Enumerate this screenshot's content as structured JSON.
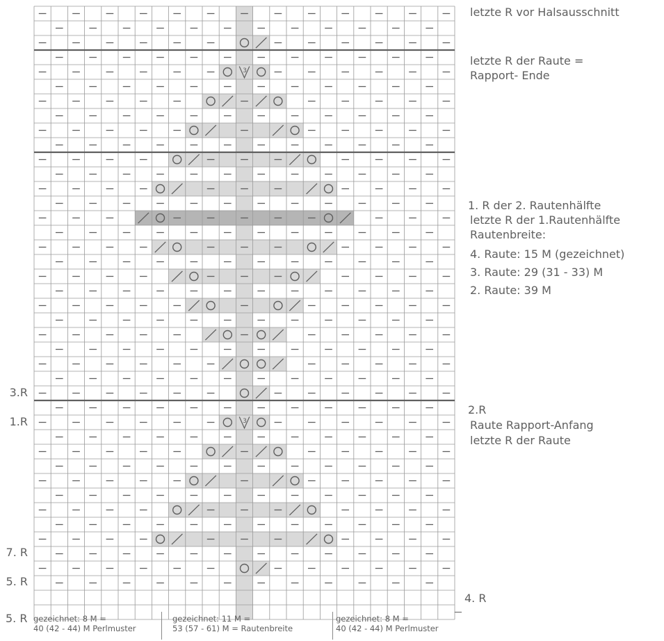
{
  "colors": {
    "shade": "#d9d9d9",
    "shade_dark": "#b5b5b5",
    "grid": "#9a9a9a",
    "ink": "#5f5f5f",
    "separator": "#888888"
  },
  "chart": {
    "columns": 25,
    "rows": 42,
    "perl_rows": [
      [
        1,
        3,
        5,
        7,
        9,
        11,
        13,
        15,
        17,
        19,
        21,
        23,
        25
      ],
      [
        2,
        4,
        6,
        8,
        10,
        12,
        14,
        16,
        18,
        20,
        22,
        24
      ]
    ],
    "center_column": 13,
    "separator_rows_after": [
      3,
      10,
      27
    ],
    "rows_top_to_bottom": [
      {
        "perl": 0
      },
      {
        "perl": 1
      },
      {
        "perl": 0,
        "sym": [
          [
            13,
            "o"
          ],
          [
            14,
            "k"
          ]
        ]
      },
      {
        "perl": 1
      },
      {
        "perl": 0,
        "sym": [
          [
            12,
            "o"
          ],
          [
            13,
            "3"
          ],
          [
            14,
            "o"
          ]
        ]
      },
      {
        "perl": 1
      },
      {
        "perl": 0,
        "sym": [
          [
            11,
            "o"
          ],
          [
            12,
            "k"
          ],
          [
            14,
            "k"
          ],
          [
            15,
            "o"
          ]
        ]
      },
      {
        "perl": 1
      },
      {
        "perl": 0,
        "sym": [
          [
            10,
            "o"
          ],
          [
            11,
            "k"
          ],
          [
            15,
            "k"
          ],
          [
            16,
            "o"
          ]
        ]
      },
      {
        "perl": 1
      },
      {
        "perl": 0,
        "sym": [
          [
            9,
            "o"
          ],
          [
            10,
            "k"
          ],
          [
            16,
            "k"
          ],
          [
            17,
            "o"
          ]
        ]
      },
      {
        "perl": 1
      },
      {
        "perl": 0,
        "sym": [
          [
            8,
            "o"
          ],
          [
            9,
            "k"
          ],
          [
            17,
            "k"
          ],
          [
            18,
            "o"
          ]
        ]
      },
      {
        "perl": 1
      },
      {
        "perl": 0,
        "dark": [
          7,
          19
        ],
        "sym": [
          [
            7,
            "k"
          ],
          [
            8,
            "o"
          ],
          [
            18,
            "o"
          ],
          [
            19,
            "k"
          ]
        ]
      },
      {
        "perl": 1
      },
      {
        "perl": 0,
        "sym": [
          [
            8,
            "k"
          ],
          [
            9,
            "o"
          ],
          [
            17,
            "o"
          ],
          [
            18,
            "k"
          ]
        ]
      },
      {
        "perl": 1
      },
      {
        "perl": 0,
        "sym": [
          [
            9,
            "k"
          ],
          [
            10,
            "o"
          ],
          [
            16,
            "o"
          ],
          [
            17,
            "k"
          ]
        ]
      },
      {
        "perl": 1
      },
      {
        "perl": 0,
        "sym": [
          [
            10,
            "k"
          ],
          [
            11,
            "o"
          ],
          [
            15,
            "o"
          ],
          [
            16,
            "k"
          ]
        ]
      },
      {
        "perl": 1
      },
      {
        "perl": 0,
        "sym": [
          [
            11,
            "k"
          ],
          [
            12,
            "o"
          ],
          [
            14,
            "o"
          ],
          [
            15,
            "k"
          ]
        ]
      },
      {
        "perl": 1
      },
      {
        "perl": 0,
        "sym": [
          [
            12,
            "k"
          ],
          [
            13,
            "o"
          ],
          [
            14,
            "o"
          ],
          [
            15,
            "k"
          ]
        ]
      },
      {
        "perl": 1
      },
      {
        "perl": 0,
        "sym": [
          [
            13,
            "o"
          ],
          [
            14,
            "k"
          ]
        ]
      },
      {
        "perl": 1
      },
      {
        "perl": 0,
        "sym": [
          [
            12,
            "o"
          ],
          [
            13,
            "3"
          ],
          [
            14,
            "o"
          ]
        ]
      },
      {
        "perl": 1
      },
      {
        "perl": 0,
        "sym": [
          [
            11,
            "o"
          ],
          [
            12,
            "k"
          ],
          [
            14,
            "k"
          ],
          [
            15,
            "o"
          ]
        ]
      },
      {
        "perl": 1
      },
      {
        "perl": 0,
        "sym": [
          [
            10,
            "o"
          ],
          [
            11,
            "k"
          ],
          [
            15,
            "k"
          ],
          [
            16,
            "o"
          ]
        ]
      },
      {
        "perl": 1
      },
      {
        "perl": 0,
        "sym": [
          [
            9,
            "o"
          ],
          [
            10,
            "k"
          ],
          [
            16,
            "k"
          ],
          [
            17,
            "o"
          ]
        ]
      },
      {
        "perl": 1
      },
      {
        "perl": 0,
        "sym": [
          [
            8,
            "o"
          ],
          [
            9,
            "k"
          ],
          [
            17,
            "k"
          ],
          [
            18,
            "o"
          ]
        ]
      },
      {
        "perl": 1
      },
      {
        "perl": 0,
        "sym": [
          [
            13,
            "o"
          ],
          [
            14,
            "k"
          ]
        ]
      },
      {
        "perl": 1
      }
    ],
    "shaded": [
      {
        "row": 3,
        "from": 13,
        "to": 14
      },
      {
        "row": 5,
        "from": 12,
        "to": 14
      },
      {
        "row": 7,
        "from": 11,
        "to": 15
      },
      {
        "row": 9,
        "from": 10,
        "to": 16
      },
      {
        "row": 11,
        "from": 9,
        "to": 17
      },
      {
        "row": 13,
        "from": 8,
        "to": 18
      },
      {
        "row": 15,
        "from": 7,
        "to": 19
      },
      {
        "row": 17,
        "from": 8,
        "to": 18
      },
      {
        "row": 19,
        "from": 9,
        "to": 17
      },
      {
        "row": 21,
        "from": 10,
        "to": 16
      },
      {
        "row": 23,
        "from": 11,
        "to": 15
      },
      {
        "row": 25,
        "from": 12,
        "to": 15
      },
      {
        "row": 27,
        "from": 13,
        "to": 14
      },
      {
        "row": 29,
        "from": 12,
        "to": 14
      },
      {
        "row": 31,
        "from": 11,
        "to": 15
      },
      {
        "row": 33,
        "from": 10,
        "to": 16
      },
      {
        "row": 35,
        "from": 9,
        "to": 17
      },
      {
        "row": 37,
        "from": 8,
        "to": 18
      },
      {
        "row": 39,
        "from": 13,
        "to": 14
      }
    ]
  },
  "labels_right": [
    {
      "text": "letzte R  vor Halsausschnitt"
    },
    {
      "text": "letzte R der Raute ="
    },
    {
      "text": "Rapport- Ende"
    },
    {
      "text": "1. R der 2. Rautenhälfte"
    },
    {
      "text": "letzte R der 1.Rautenhälfte"
    },
    {
      "text": "Rautenbreite:"
    },
    {
      "text": "4. Raute: 15 M (gezeichnet)"
    },
    {
      "text": "3. Raute: 29 (31 - 33) M"
    },
    {
      "text": "2. Raute: 39 M"
    },
    {
      "text": "2.R"
    },
    {
      "text": "Raute Rapport-Anfang"
    },
    {
      "text": "letzte R der Raute"
    },
    {
      "text": "4. R"
    }
  ],
  "labels_left": [
    {
      "text": "3.R"
    },
    {
      "text": "1.R"
    },
    {
      "text": "7. R"
    },
    {
      "text": "5. R"
    }
  ],
  "footer": {
    "row_label": "5. R",
    "sections": [
      {
        "line1": "gezeichnet: 8 M =",
        "line2": "40 (42 - 44) M Perlmuster"
      },
      {
        "line1": "gezeichnet: 11 M =",
        "line2": "53 (57 - 61) M = Rautenbreite"
      },
      {
        "line1": "gezeichnet: 8 M =",
        "line2": "40 (42 - 44) M Perlmuster"
      }
    ]
  }
}
